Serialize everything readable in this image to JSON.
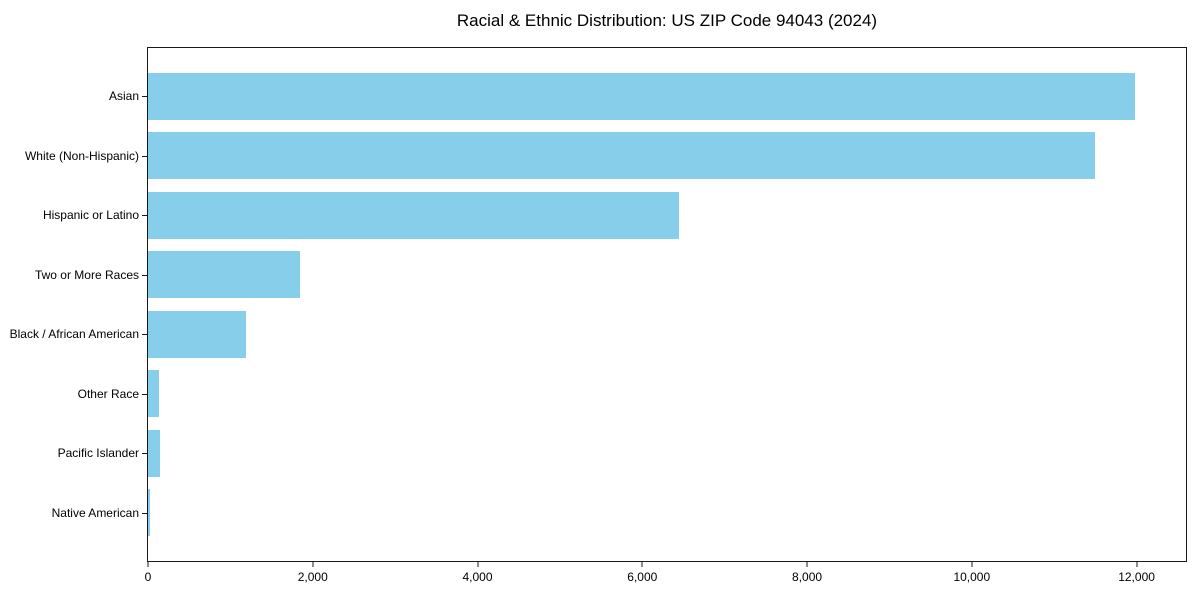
{
  "chart_data": {
    "type": "bar",
    "orientation": "horizontal",
    "title": "Racial & Ethnic Distribution: US ZIP Code 94043 (2024)",
    "xlabel": "",
    "ylabel": "",
    "categories": [
      "Asian",
      "White (Non-Hispanic)",
      "Hispanic or Latino",
      "Two or More Races",
      "Black / African American",
      "Other Race",
      "Pacific Islander",
      "Native American"
    ],
    "values": [
      11975,
      11490,
      6440,
      1850,
      1195,
      130,
      140,
      30
    ],
    "xlim": [
      0,
      12600
    ],
    "x_ticks": [
      {
        "value": 0,
        "label": "0"
      },
      {
        "value": 2000,
        "label": "2,000"
      },
      {
        "value": 4000,
        "label": "4,000"
      },
      {
        "value": 6000,
        "label": "6,000"
      },
      {
        "value": 8000,
        "label": "8,000"
      },
      {
        "value": 10000,
        "label": "10,000"
      },
      {
        "value": 12000,
        "label": "12,000"
      }
    ],
    "bar_color": "#87CEEB",
    "text_color": "#000000",
    "spine_color": "#1a1a1a",
    "background_color": "#ffffff",
    "grid": false,
    "legend": null
  }
}
